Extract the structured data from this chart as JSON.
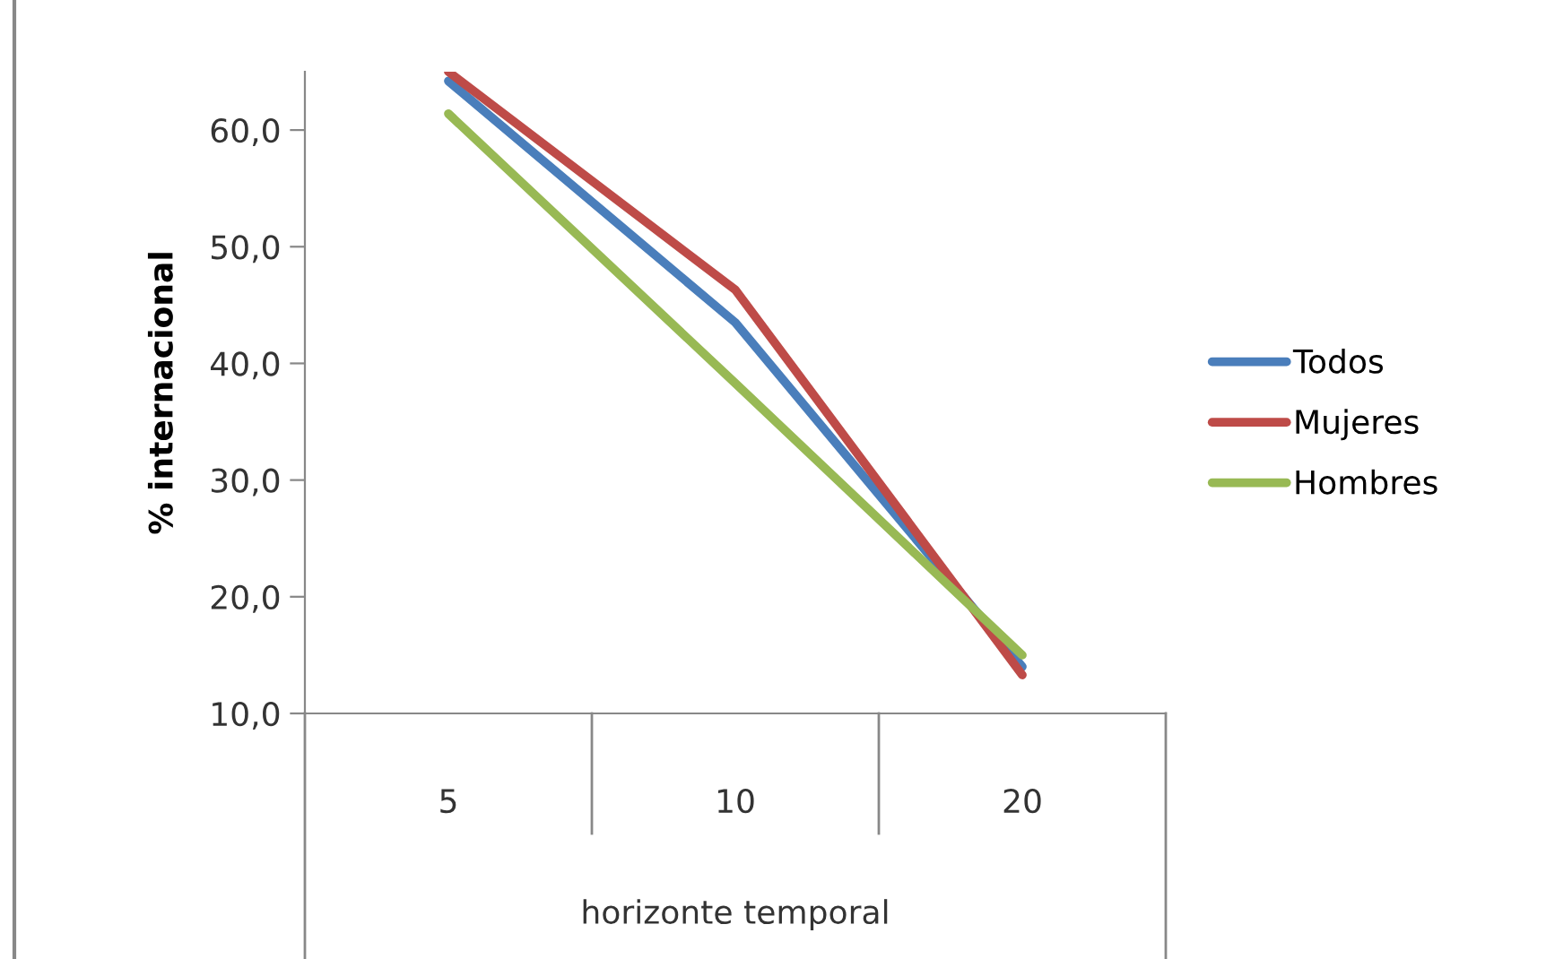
{
  "chart_data": {
    "type": "line",
    "xlabel": "horizonte temporal",
    "ylabel": "% internacional",
    "categories": [
      "5",
      "10",
      "20"
    ],
    "series": [
      {
        "name": "Todos",
        "color": "#4a7ebb",
        "values": [
          64.2,
          43.5,
          14.0
        ]
      },
      {
        "name": "Mujeres",
        "color": "#be4b48",
        "values": [
          65.0,
          46.3,
          13.3
        ]
      },
      {
        "name": "Hombres",
        "color": "#98b954",
        "values": [
          61.4,
          38.3,
          15.0
        ]
      }
    ],
    "ylim": [
      10,
      65
    ],
    "yticks": [
      {
        "value": 10,
        "label": "10,0"
      },
      {
        "value": 20,
        "label": "20,0"
      },
      {
        "value": 30,
        "label": "30,0"
      },
      {
        "value": 40,
        "label": "40,0"
      },
      {
        "value": 50,
        "label": "50,0"
      },
      {
        "value": 60,
        "label": "60,0"
      }
    ],
    "grid": false,
    "legend": "right",
    "marker": "none",
    "line_style": "solid"
  }
}
